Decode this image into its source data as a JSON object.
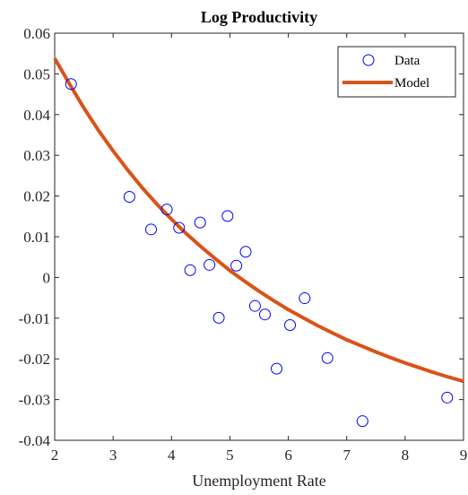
{
  "chart_data": {
    "type": "scatter",
    "title": "Log Productivity",
    "xlabel": "Unemployment Rate",
    "ylabel": "",
    "xlim": [
      2,
      9
    ],
    "ylim": [
      -0.04,
      0.06
    ],
    "xticks": [
      "2",
      "3",
      "4",
      "5",
      "6",
      "7",
      "8",
      "9"
    ],
    "yticks": [
      "-0.04",
      "-0.03",
      "-0.02",
      "-0.01",
      "0",
      "0.01",
      "0.02",
      "0.03",
      "0.04",
      "0.05",
      "0.06"
    ],
    "grid": false,
    "legend": {
      "placement": "top-right",
      "entries": [
        "Data",
        "Model"
      ]
    },
    "series": [
      {
        "name": "Data",
        "kind": "scatter",
        "color": "#0000FF",
        "x": [
          2.28,
          3.28,
          3.65,
          3.92,
          4.13,
          4.32,
          4.49,
          4.65,
          4.81,
          4.96,
          5.11,
          5.27,
          5.43,
          5.6,
          5.8,
          6.03,
          6.28,
          6.67,
          7.27,
          8.72
        ],
        "y": [
          0.0475,
          0.0198,
          0.0118,
          0.0167,
          0.0122,
          0.0018,
          0.0135,
          0.0031,
          -0.0099,
          0.0151,
          0.0029,
          0.0063,
          -0.007,
          -0.0091,
          -0.0224,
          -0.0117,
          -0.0051,
          -0.0198,
          -0.0353,
          -0.0295
        ]
      },
      {
        "name": "Model",
        "kind": "line",
        "color": "#D95319",
        "x": [
          2.0,
          2.25,
          2.5,
          2.75,
          3.0,
          3.25,
          3.5,
          3.75,
          4.0,
          4.25,
          4.5,
          4.75,
          5.0,
          5.25,
          5.5,
          5.75,
          6.0,
          6.25,
          6.5,
          6.75,
          7.0,
          7.25,
          7.5,
          7.75,
          8.0,
          8.25,
          8.5,
          8.75,
          9.0
        ],
        "y": [
          0.0538,
          0.0476,
          0.0416,
          0.0361,
          0.0311,
          0.0264,
          0.022,
          0.018,
          0.0143,
          0.0108,
          0.0076,
          0.0046,
          0.0017,
          -0.0009,
          -0.0034,
          -0.0057,
          -0.0079,
          -0.0099,
          -0.0118,
          -0.0136,
          -0.0153,
          -0.0168,
          -0.0183,
          -0.0197,
          -0.021,
          -0.0222,
          -0.0234,
          -0.0245,
          -0.0255
        ]
      }
    ]
  }
}
